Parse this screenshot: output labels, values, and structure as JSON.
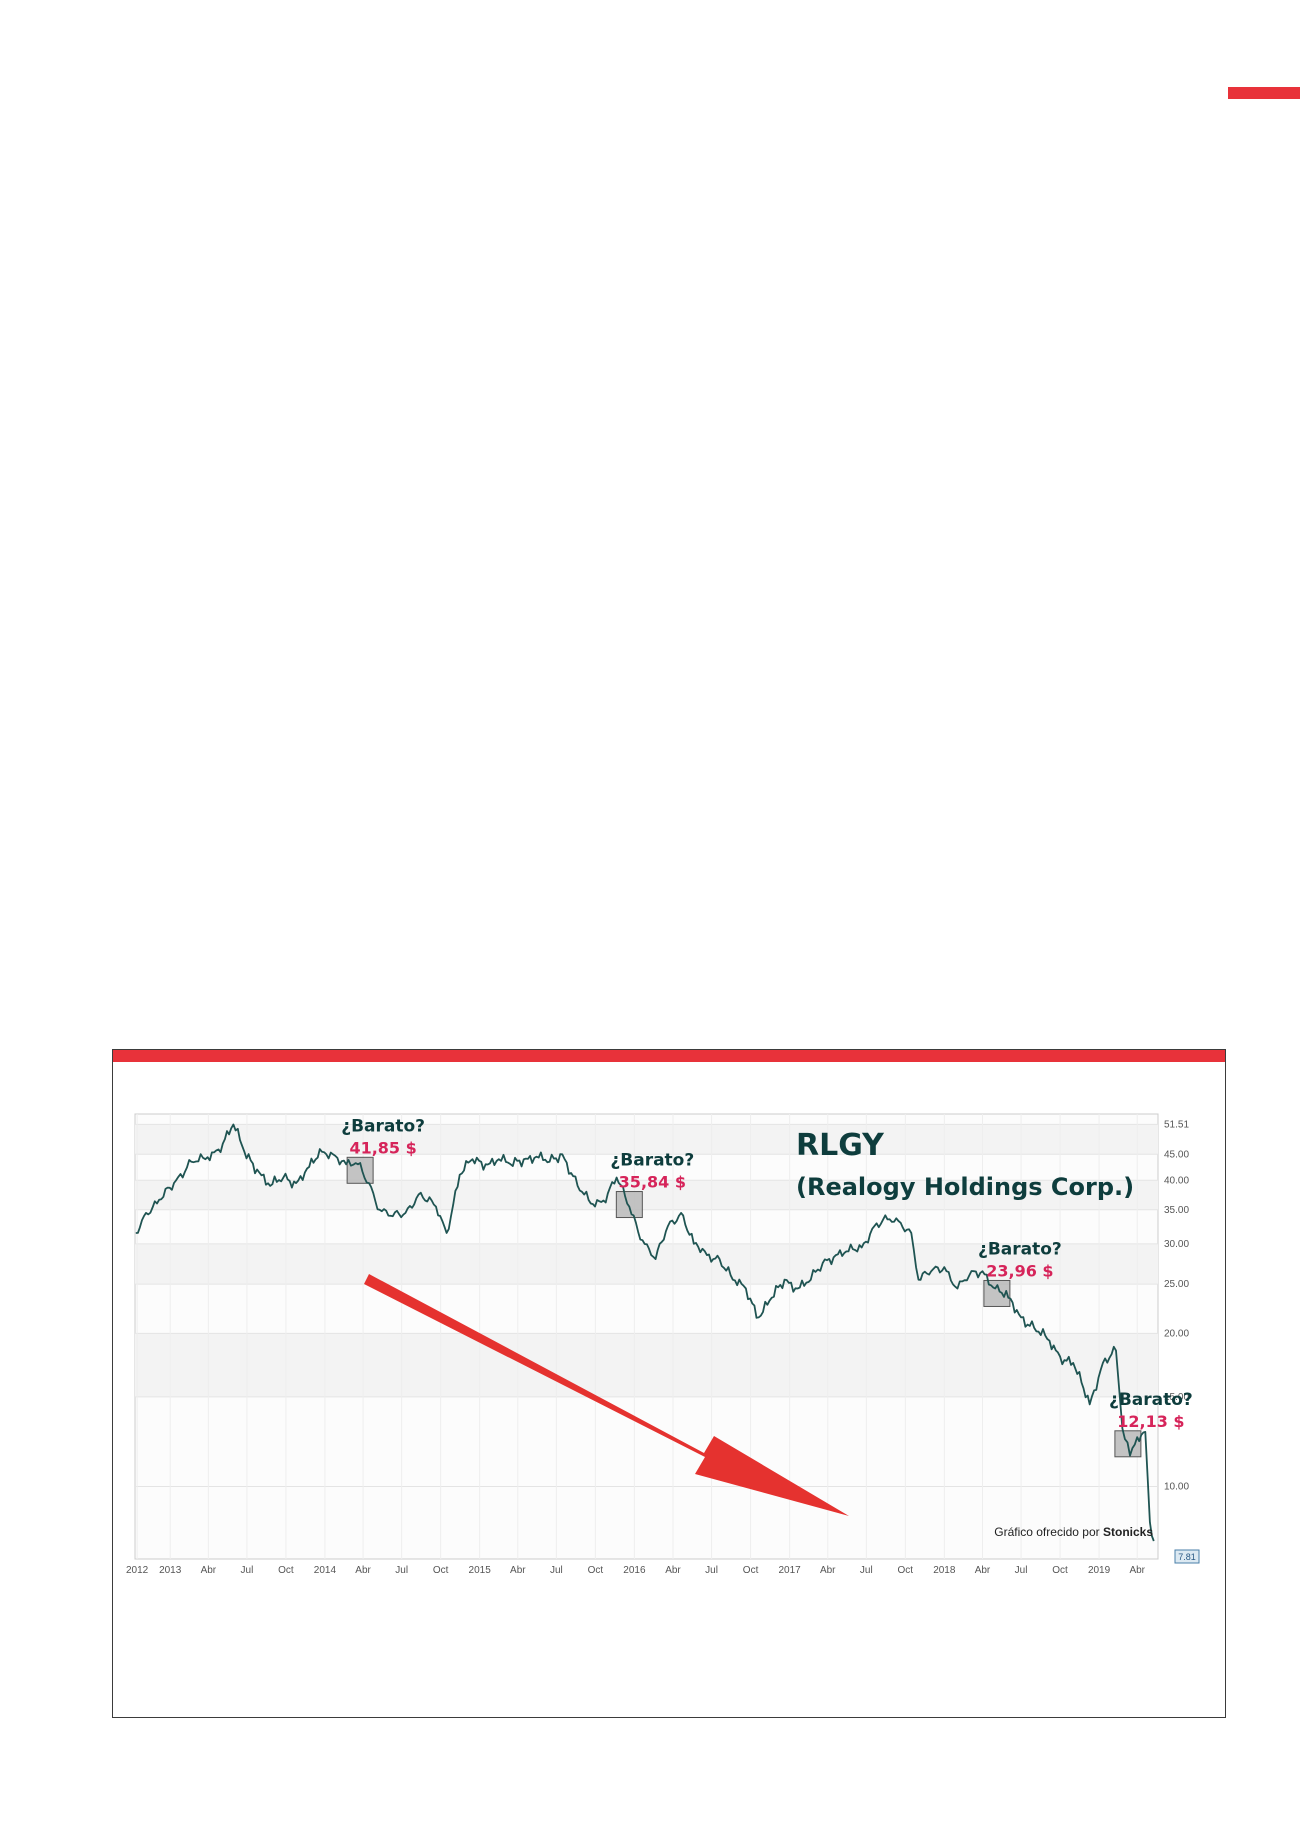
{
  "colors": {
    "accent": "#e8323a",
    "price_line": "#1f5452",
    "title": "#0e3d3d",
    "price_label": "#d6245a",
    "arrow": "#e5322f",
    "marker": "#b9b9b9"
  },
  "chart_data": {
    "type": "line",
    "title": "RLGY",
    "subtitle": "(Realogy Holdings Corp.)",
    "credit_prefix": "Gráfico ofrecido por",
    "credit_brand": "Stonicks",
    "y_scale": "log",
    "ylim": [
      7.2,
      54
    ],
    "y_ticks": [
      51.51,
      45,
      40,
      35,
      30,
      25,
      20,
      15,
      10
    ],
    "y_tick_labels": [
      "51.51",
      "45.00",
      "40.00",
      "35.00",
      "30.00",
      "25.00",
      "20.00",
      "15.00",
      "10.00"
    ],
    "last_value_label": "7.81",
    "last_value": 7.81,
    "xlim": [
      "2012-10-10",
      "2019-05-20"
    ],
    "x_ticks": [
      {
        "date": "2012-10-15",
        "label": "2012"
      },
      {
        "date": "2013-01-01",
        "label": "2013"
      },
      {
        "date": "2013-04-01",
        "label": "Abr"
      },
      {
        "date": "2013-07-01",
        "label": "Jul"
      },
      {
        "date": "2013-10-01",
        "label": "Oct"
      },
      {
        "date": "2014-01-01",
        "label": "2014"
      },
      {
        "date": "2014-04-01",
        "label": "Abr"
      },
      {
        "date": "2014-07-01",
        "label": "Jul"
      },
      {
        "date": "2014-10-01",
        "label": "Oct"
      },
      {
        "date": "2015-01-01",
        "label": "2015"
      },
      {
        "date": "2015-04-01",
        "label": "Abr"
      },
      {
        "date": "2015-07-01",
        "label": "Jul"
      },
      {
        "date": "2015-10-01",
        "label": "Oct"
      },
      {
        "date": "2016-01-01",
        "label": "2016"
      },
      {
        "date": "2016-04-01",
        "label": "Abr"
      },
      {
        "date": "2016-07-01",
        "label": "Jul"
      },
      {
        "date": "2016-10-01",
        "label": "Oct"
      },
      {
        "date": "2017-01-01",
        "label": "2017"
      },
      {
        "date": "2017-04-01",
        "label": "Abr"
      },
      {
        "date": "2017-07-01",
        "label": "Jul"
      },
      {
        "date": "2017-10-01",
        "label": "Oct"
      },
      {
        "date": "2018-01-01",
        "label": "2018"
      },
      {
        "date": "2018-04-01",
        "label": "Abr"
      },
      {
        "date": "2018-07-01",
        "label": "Jul"
      },
      {
        "date": "2018-10-01",
        "label": "Oct"
      },
      {
        "date": "2019-01-01",
        "label": "2019"
      },
      {
        "date": "2019-04-01",
        "label": "Abr"
      }
    ],
    "series": [
      {
        "points": [
          [
            "2012-10-12",
            31.5
          ],
          [
            "2012-11-05",
            34.5
          ],
          [
            "2012-12-01",
            36.0
          ],
          [
            "2013-01-15",
            40.0
          ],
          [
            "2013-02-20",
            43.5
          ],
          [
            "2013-03-25",
            44.0
          ],
          [
            "2013-04-25",
            46.0
          ],
          [
            "2013-05-30",
            51.5
          ],
          [
            "2013-06-25",
            45.5
          ],
          [
            "2013-07-25",
            42.0
          ],
          [
            "2013-08-25",
            39.0
          ],
          [
            "2013-09-25",
            40.5
          ],
          [
            "2013-10-25",
            39.5
          ],
          [
            "2013-11-25",
            42.5
          ],
          [
            "2013-12-25",
            45.5
          ],
          [
            "2014-01-20",
            45.0
          ],
          [
            "2014-02-20",
            43.0
          ],
          [
            "2014-03-20",
            43.0
          ],
          [
            "2014-04-15",
            39.5
          ],
          [
            "2014-05-10",
            35.0
          ],
          [
            "2014-06-10",
            34.0
          ],
          [
            "2014-07-10",
            34.5
          ],
          [
            "2014-08-10",
            37.5
          ],
          [
            "2014-09-20",
            35.5
          ],
          [
            "2014-10-15",
            31.5
          ],
          [
            "2014-11-15",
            41.0
          ],
          [
            "2014-12-15",
            44.0
          ],
          [
            "2015-01-15",
            43.0
          ],
          [
            "2015-02-15",
            44.0
          ],
          [
            "2015-03-15",
            43.0
          ],
          [
            "2015-04-15",
            44.0
          ],
          [
            "2015-05-15",
            44.5
          ],
          [
            "2015-06-15",
            43.5
          ],
          [
            "2015-07-15",
            45.0
          ],
          [
            "2015-08-20",
            39.0
          ],
          [
            "2015-09-20",
            36.0
          ],
          [
            "2015-10-20",
            36.5
          ],
          [
            "2015-11-20",
            40.5
          ],
          [
            "2015-12-20",
            35.5
          ],
          [
            "2016-01-20",
            30.5
          ],
          [
            "2016-02-20",
            28.0
          ],
          [
            "2016-03-20",
            32.5
          ],
          [
            "2016-04-20",
            34.5
          ],
          [
            "2016-05-20",
            30.0
          ],
          [
            "2016-06-20",
            28.5
          ],
          [
            "2016-07-20",
            28.0
          ],
          [
            "2016-08-20",
            25.5
          ],
          [
            "2016-09-20",
            24.5
          ],
          [
            "2016-10-20",
            21.5
          ],
          [
            "2016-11-20",
            23.5
          ],
          [
            "2016-12-20",
            25.5
          ],
          [
            "2017-01-20",
            24.5
          ],
          [
            "2017-02-20",
            25.5
          ],
          [
            "2017-03-20",
            27.5
          ],
          [
            "2017-04-20",
            28.5
          ],
          [
            "2017-05-20",
            29.0
          ],
          [
            "2017-06-20",
            29.5
          ],
          [
            "2017-07-20",
            32.5
          ],
          [
            "2017-08-20",
            33.5
          ],
          [
            "2017-09-20",
            33.0
          ],
          [
            "2017-10-15",
            31.5
          ],
          [
            "2017-11-01",
            25.5
          ],
          [
            "2017-12-01",
            26.5
          ],
          [
            "2018-01-01",
            27.0
          ],
          [
            "2018-02-01",
            24.5
          ],
          [
            "2018-03-01",
            26.0
          ],
          [
            "2018-04-01",
            26.5
          ],
          [
            "2018-05-01",
            24.5
          ],
          [
            "2018-06-01",
            23.5
          ],
          [
            "2018-07-01",
            21.5
          ],
          [
            "2018-08-01",
            20.5
          ],
          [
            "2018-09-01",
            19.5
          ],
          [
            "2018-10-01",
            18.0
          ],
          [
            "2018-11-01",
            17.5
          ],
          [
            "2018-12-10",
            14.5
          ],
          [
            "2019-01-10",
            17.5
          ],
          [
            "2019-02-10",
            18.5
          ],
          [
            "2019-02-25",
            13.0
          ],
          [
            "2019-03-15",
            11.5
          ],
          [
            "2019-04-01",
            12.5
          ],
          [
            "2019-04-20",
            12.8
          ],
          [
            "2019-05-01",
            8.5
          ],
          [
            "2019-05-10",
            7.81
          ]
        ]
      }
    ],
    "annotations": [
      {
        "question": "¿Barato?",
        "price": "41,85 $",
        "date": "2014-03-25",
        "value": 41.85
      },
      {
        "question": "¿Barato?",
        "price": "35,84 $",
        "date": "2015-12-20",
        "value": 35.84
      },
      {
        "question": "¿Barato?",
        "price": "23,96 $",
        "date": "2018-05-05",
        "value": 23.96
      },
      {
        "question": "¿Barato?",
        "price": "12,13 $",
        "date": "2019-03-10",
        "value": 12.13
      }
    ],
    "grid": true,
    "trend_arrow": "down"
  }
}
